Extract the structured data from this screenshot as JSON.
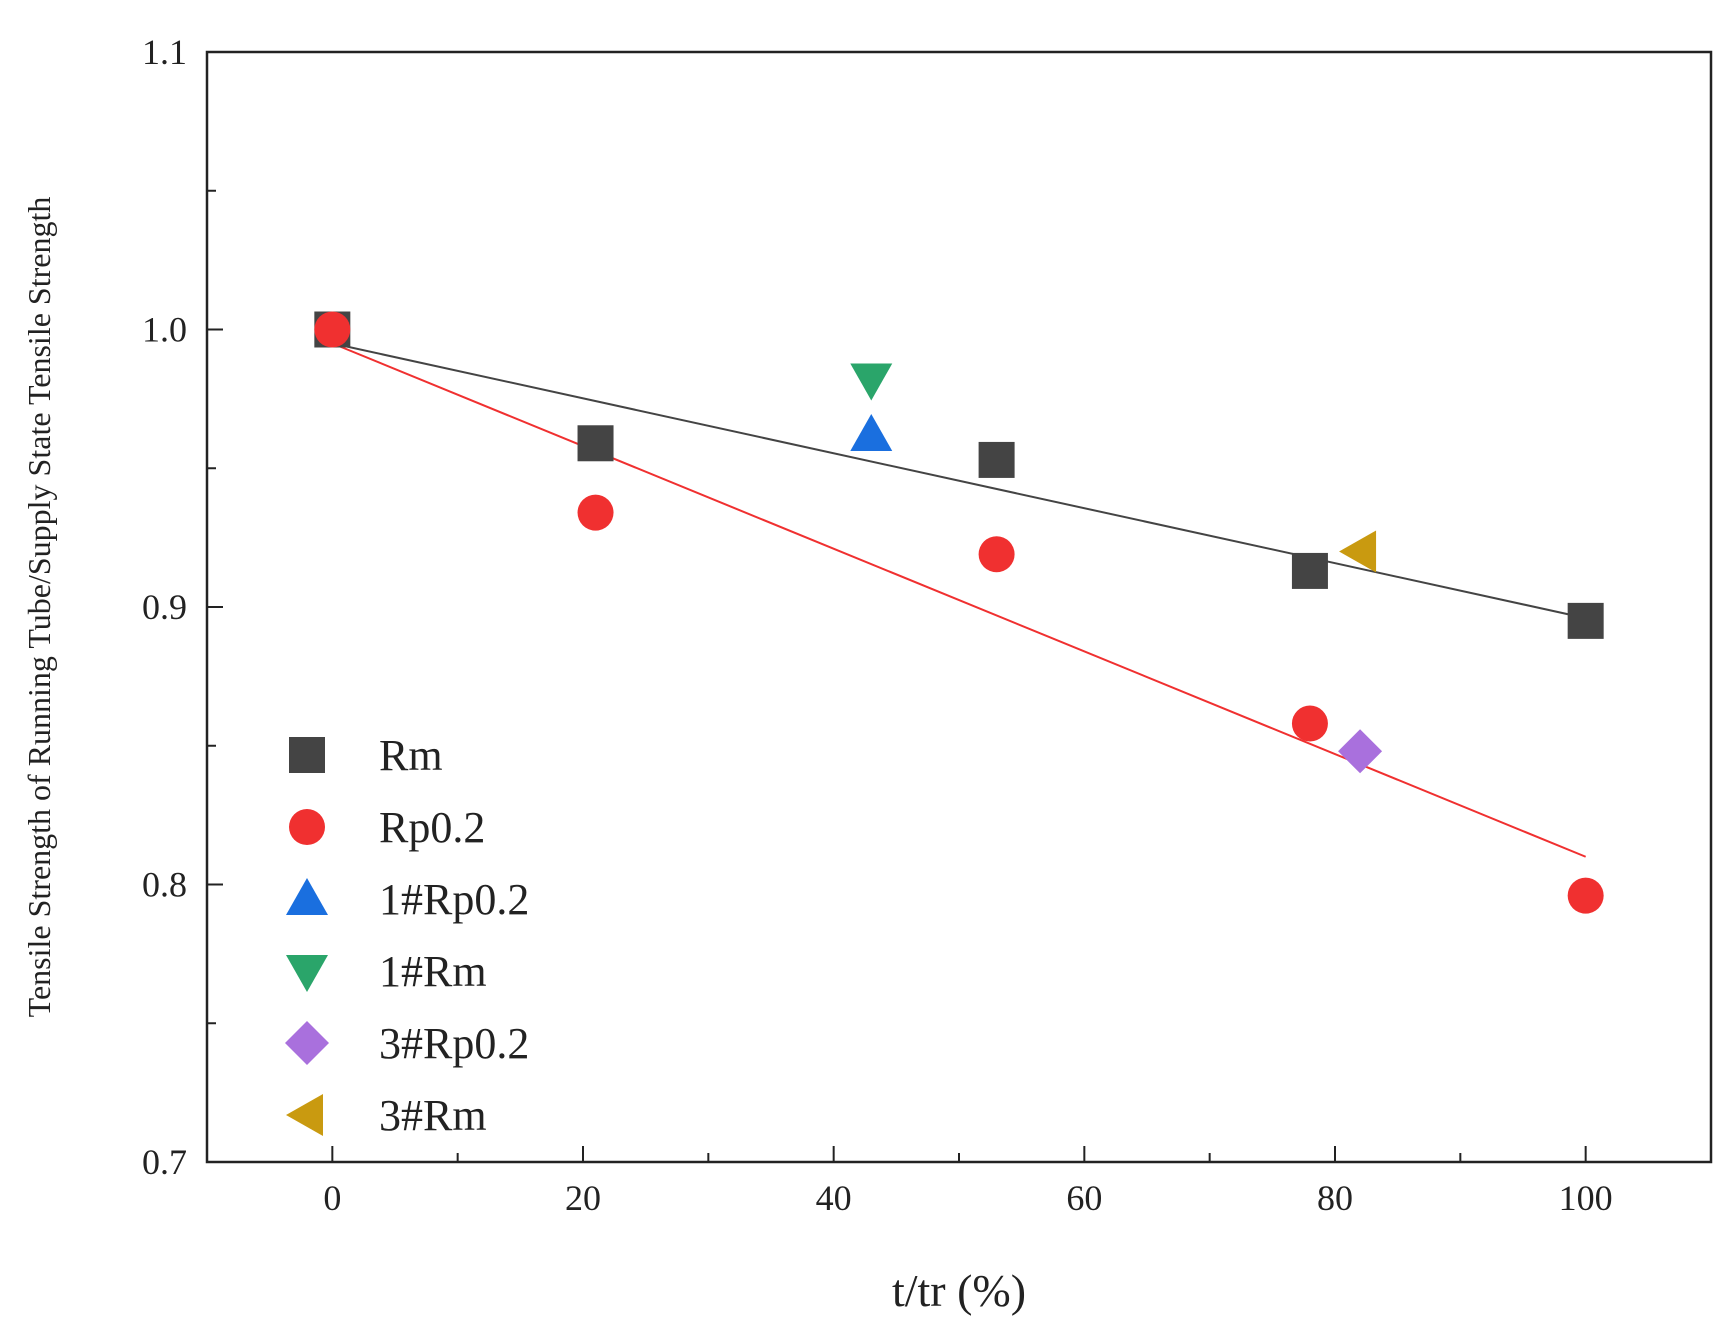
{
  "chart_data": {
    "type": "scatter",
    "xlabel": "t/tr (%)",
    "ylabel": "Tensile Strength of Running Tube/Supply State Tensile Strength",
    "xlim": [
      -10,
      110
    ],
    "ylim": [
      0.7,
      1.1
    ],
    "x_ticks": [
      0,
      20,
      40,
      60,
      80,
      100
    ],
    "x_tick_labels": [
      "0",
      "20",
      "40",
      "60",
      "80",
      "100"
    ],
    "y_ticks": [
      0.7,
      0.8,
      0.9,
      1.0,
      1.1
    ],
    "y_tick_labels": [
      "0.7",
      "0.8",
      "0.9",
      "1.0",
      "1.1"
    ],
    "grid": false,
    "legend_position": "bottom-left",
    "series": [
      {
        "name": "Rm",
        "marker": "square",
        "color": "#444444",
        "x": [
          0,
          21,
          53,
          78,
          100
        ],
        "y": [
          1.0,
          0.959,
          0.953,
          0.913,
          0.895
        ]
      },
      {
        "name": "Rp0.2",
        "marker": "circle",
        "color": "#f03030",
        "x": [
          0,
          21,
          53,
          78,
          100
        ],
        "y": [
          1.0,
          0.934,
          0.919,
          0.858,
          0.796
        ]
      },
      {
        "name": "1#Rp0.2",
        "marker": "triangle-up",
        "color": "#1a6fdf",
        "x": [
          43
        ],
        "y": [
          0.962
        ]
      },
      {
        "name": "1#Rm",
        "marker": "triangle-down",
        "color": "#2aa56a",
        "x": [
          43
        ],
        "y": [
          0.982
        ]
      },
      {
        "name": "3#Rp0.2",
        "marker": "diamond",
        "color": "#a970dd",
        "x": [
          82
        ],
        "y": [
          0.848
        ]
      },
      {
        "name": "3#Rm",
        "marker": "triangle-left",
        "color": "#c99a10",
        "x": [
          82
        ],
        "y": [
          0.92
        ]
      }
    ],
    "fit_lines": [
      {
        "name": "Rm-fit",
        "color": "#444444",
        "x": [
          0,
          100
        ],
        "y": [
          0.995,
          0.896
        ]
      },
      {
        "name": "Rp0.2-fit",
        "color": "#f03030",
        "x": [
          0,
          100
        ],
        "y": [
          0.995,
          0.81
        ]
      }
    ]
  }
}
